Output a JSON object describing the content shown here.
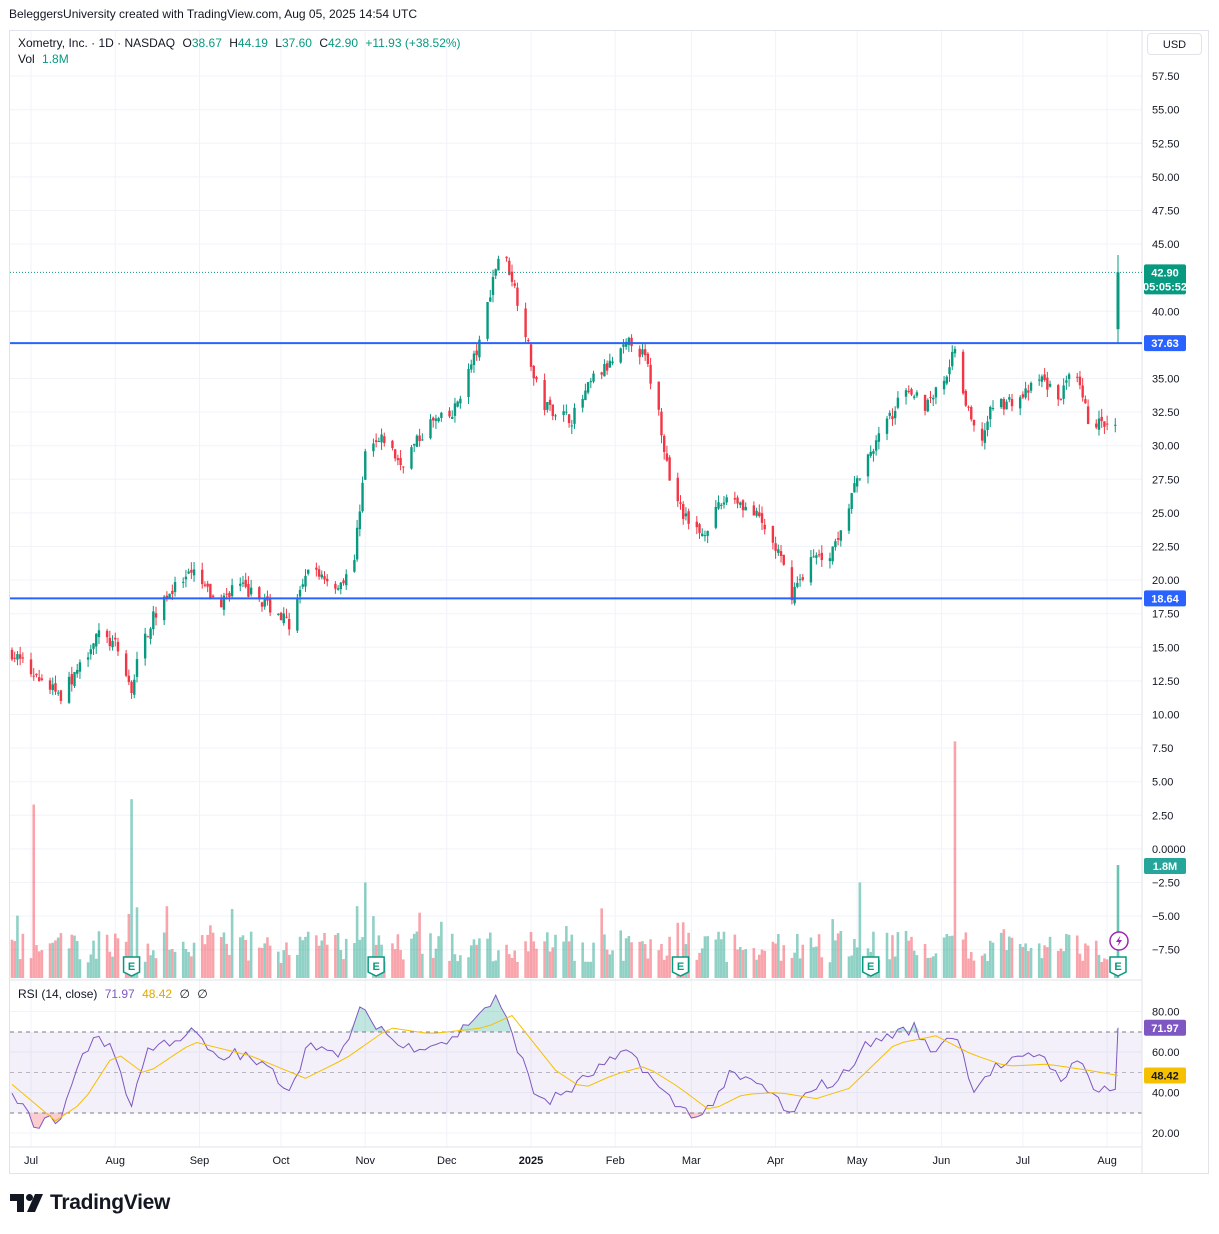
{
  "header": {
    "attribution": "BeleggersUniversity created with TradingView.com, Aug 05, 2025 14:54 UTC"
  },
  "legend": {
    "symbol": "Xometry, Inc. · 1D · NASDAQ",
    "open_label": "O",
    "open": "38.67",
    "high_label": "H",
    "high": "44.19",
    "low_label": "L",
    "low": "37.60",
    "close_label": "C",
    "close": "42.90",
    "change": "+11.93 (+38.52%)",
    "volume_label": "Vol",
    "volume": "1.8M"
  },
  "currency": "USD",
  "rsi_legend": {
    "label": "RSI (14, close)",
    "rsi": "71.97",
    "rsi_ma": "48.42",
    "extra1": "∅",
    "extra2": "∅"
  },
  "footer": {
    "brand": "TradingView"
  },
  "colors": {
    "up": "#089981",
    "down": "#f23645",
    "level": "#2962ff",
    "rsi": "#7e57c2",
    "rsi_ma": "#f5c000"
  },
  "chart_data": {
    "type": "candlestick",
    "y_ticks": [
      "57.50",
      "55.00",
      "52.50",
      "50.00",
      "47.50",
      "45.00",
      "40.00",
      "35.00",
      "32.50",
      "30.00",
      "27.50",
      "25.00",
      "22.50",
      "20.00",
      "17.50",
      "15.00",
      "12.50",
      "10.00",
      "7.50",
      "5.00",
      "2.50",
      "0.0000",
      "−2.50",
      "−5.00",
      "−7.50"
    ],
    "x_labels": [
      "Jul",
      "Aug",
      "Sep",
      "Oct",
      "Nov",
      "Dec",
      "2025",
      "Feb",
      "Mar",
      "Apr",
      "May",
      "Jun",
      "Jul",
      "Aug"
    ],
    "price_anchors": [
      [
        "2024-06-24",
        14.6
      ],
      [
        "2024-07-03",
        12.7
      ],
      [
        "2024-07-12",
        11.4
      ],
      [
        "2024-07-19",
        13.5
      ],
      [
        "2024-07-25",
        16.0
      ],
      [
        "2024-08-01",
        15.1
      ],
      [
        "2024-08-07",
        11.8
      ],
      [
        "2024-08-10",
        14.8
      ],
      [
        "2024-08-18",
        18.6
      ],
      [
        "2024-08-30",
        20.5
      ],
      [
        "2024-09-08",
        18.0
      ],
      [
        "2024-09-14",
        19.8
      ],
      [
        "2024-09-26",
        18.2
      ],
      [
        "2024-10-04",
        16.8
      ],
      [
        "2024-10-12",
        21.0
      ],
      [
        "2024-10-22",
        19.5
      ],
      [
        "2024-10-28",
        21.5
      ],
      [
        "2024-11-01",
        29.5
      ],
      [
        "2024-11-08",
        30.5
      ],
      [
        "2024-11-14",
        28.6
      ],
      [
        "2024-11-25",
        31.7
      ],
      [
        "2024-12-03",
        32.2
      ],
      [
        "2024-12-08",
        35.0
      ],
      [
        "2024-12-13",
        37.5
      ],
      [
        "2024-12-18",
        42.5
      ],
      [
        "2024-12-21",
        44.8
      ],
      [
        "2024-12-25",
        42.5
      ],
      [
        "2024-12-30",
        38.5
      ],
      [
        "2025-01-02",
        35.0
      ],
      [
        "2025-01-06",
        33.0
      ],
      [
        "2025-01-16",
        32.0
      ],
      [
        "2025-01-24",
        35.0
      ],
      [
        "2025-01-30",
        36.0
      ],
      [
        "2025-02-07",
        37.8
      ],
      [
        "2025-02-12",
        36.5
      ],
      [
        "2025-02-17",
        32.5
      ],
      [
        "2025-02-21",
        27.5
      ],
      [
        "2025-02-28",
        24.0
      ],
      [
        "2025-03-05",
        23.5
      ],
      [
        "2025-03-15",
        26.5
      ],
      [
        "2025-03-26",
        24.5
      ],
      [
        "2025-04-02",
        22.0
      ],
      [
        "2025-04-07",
        19.0
      ],
      [
        "2025-04-14",
        21.5
      ],
      [
        "2025-04-21",
        22.0
      ],
      [
        "2025-04-26",
        24.5
      ],
      [
        "2025-05-03",
        28.5
      ],
      [
        "2025-05-10",
        31.0
      ],
      [
        "2025-05-20",
        34.5
      ],
      [
        "2025-05-26",
        33.0
      ],
      [
        "2025-06-02",
        35.0
      ],
      [
        "2025-06-06",
        37.4
      ],
      [
        "2025-06-10",
        33.0
      ],
      [
        "2025-06-15",
        30.0
      ],
      [
        "2025-06-20",
        33.0
      ],
      [
        "2025-06-30",
        33.5
      ],
      [
        "2025-07-08",
        35.0
      ],
      [
        "2025-07-14",
        33.5
      ],
      [
        "2025-07-20",
        35.5
      ],
      [
        "2025-07-25",
        32.0
      ],
      [
        "2025-07-31",
        31.5
      ],
      [
        "2025-08-04",
        31.2
      ],
      [
        "2025-08-05",
        42.9
      ]
    ],
    "last_candle": {
      "date": "2025-08-05",
      "open": 38.67,
      "high": 44.19,
      "low": 37.6,
      "close": 42.9
    },
    "horizontal_levels": [
      37.63,
      18.64
    ],
    "price_labels": {
      "last": "42.90",
      "countdown": "05:05:52",
      "level_upper": "37.63",
      "level_lower": "18.64",
      "volume": "1.8M"
    },
    "volume_spikes": [
      [
        "2024-07-02",
        3.3,
        "down"
      ],
      [
        "2024-08-07",
        3.7,
        "up"
      ],
      [
        "2024-11-01",
        -2.5,
        "up"
      ],
      [
        "2024-12-14",
        -1.5,
        "down"
      ],
      [
        "2025-02-24",
        -5.5,
        "down"
      ],
      [
        "2025-05-02",
        -2.5,
        "up"
      ],
      [
        "2025-06-06",
        8.0,
        "down"
      ],
      [
        "2025-08-05",
        -1.2,
        "up"
      ]
    ],
    "earnings_markers": [
      "2024-08-07",
      "2024-11-05",
      "2025-02-25",
      "2025-05-06",
      "2025-08-05"
    ],
    "earnings_label": "E",
    "rsi": {
      "ticks": [
        "80.00",
        "60.00",
        "40.00",
        "20.00"
      ],
      "upper_band": 70,
      "lower_band": 30,
      "last": 71.97,
      "last_ma": 48.42,
      "anchors": [
        [
          "2024-06-24",
          38
        ],
        [
          "2024-07-03",
          24
        ],
        [
          "2024-07-12",
          28
        ],
        [
          "2024-07-19",
          55
        ],
        [
          "2024-07-25",
          70
        ],
        [
          "2024-08-01",
          58
        ],
        [
          "2024-08-07",
          33
        ],
        [
          "2024-08-12",
          60
        ],
        [
          "2024-08-20",
          65
        ],
        [
          "2024-08-30",
          70
        ],
        [
          "2024-09-08",
          55
        ],
        [
          "2024-09-14",
          60
        ],
        [
          "2024-09-26",
          52
        ],
        [
          "2024-10-04",
          42
        ],
        [
          "2024-10-12",
          66
        ],
        [
          "2024-10-22",
          56
        ],
        [
          "2024-10-30",
          80
        ],
        [
          "2024-11-07",
          72
        ],
        [
          "2024-11-14",
          62
        ],
        [
          "2024-11-25",
          64
        ],
        [
          "2024-12-03",
          66
        ],
        [
          "2024-12-10",
          76
        ],
        [
          "2024-12-19",
          86
        ],
        [
          "2024-12-25",
          70
        ],
        [
          "2025-01-02",
          40
        ],
        [
          "2025-01-08",
          36
        ],
        [
          "2025-01-16",
          42
        ],
        [
          "2025-01-27",
          53
        ],
        [
          "2025-02-07",
          60
        ],
        [
          "2025-02-17",
          42
        ],
        [
          "2025-02-24",
          33
        ],
        [
          "2025-03-05",
          28
        ],
        [
          "2025-03-15",
          48
        ],
        [
          "2025-03-26",
          44
        ],
        [
          "2025-04-02",
          36
        ],
        [
          "2025-04-07",
          27
        ],
        [
          "2025-04-14",
          43
        ],
        [
          "2025-04-24",
          45
        ],
        [
          "2025-05-03",
          62
        ],
        [
          "2025-05-12",
          68
        ],
        [
          "2025-05-22",
          72
        ],
        [
          "2025-05-28",
          60
        ],
        [
          "2025-06-06",
          70
        ],
        [
          "2025-06-13",
          42
        ],
        [
          "2025-06-20",
          52
        ],
        [
          "2025-06-30",
          56
        ],
        [
          "2025-07-08",
          60
        ],
        [
          "2025-07-14",
          47
        ],
        [
          "2025-07-22",
          55
        ],
        [
          "2025-07-28",
          42
        ],
        [
          "2025-08-04",
          42
        ],
        [
          "2025-08-05",
          71.97
        ]
      ],
      "ma_anchors": [
        [
          "2024-06-24",
          44
        ],
        [
          "2024-07-10",
          26
        ],
        [
          "2024-07-20",
          35
        ],
        [
          "2024-08-01",
          60
        ],
        [
          "2024-08-12",
          49
        ],
        [
          "2024-08-30",
          65
        ],
        [
          "2024-09-20",
          58
        ],
        [
          "2024-10-10",
          47
        ],
        [
          "2024-10-25",
          57
        ],
        [
          "2024-11-10",
          72
        ],
        [
          "2024-11-25",
          69
        ],
        [
          "2024-12-15",
          72
        ],
        [
          "2024-12-25",
          78
        ],
        [
          "2025-01-10",
          51
        ],
        [
          "2025-01-20",
          42
        ],
        [
          "2025-02-01",
          49
        ],
        [
          "2025-02-12",
          53
        ],
        [
          "2025-02-24",
          43
        ],
        [
          "2025-03-08",
          31
        ],
        [
          "2025-03-20",
          39
        ],
        [
          "2025-04-02",
          40
        ],
        [
          "2025-04-16",
          37
        ],
        [
          "2025-04-28",
          42
        ],
        [
          "2025-05-15",
          64
        ],
        [
          "2025-05-30",
          68
        ],
        [
          "2025-06-12",
          59
        ],
        [
          "2025-06-25",
          53
        ],
        [
          "2025-07-10",
          54
        ],
        [
          "2025-07-25",
          51
        ],
        [
          "2025-08-05",
          48.42
        ]
      ]
    }
  }
}
